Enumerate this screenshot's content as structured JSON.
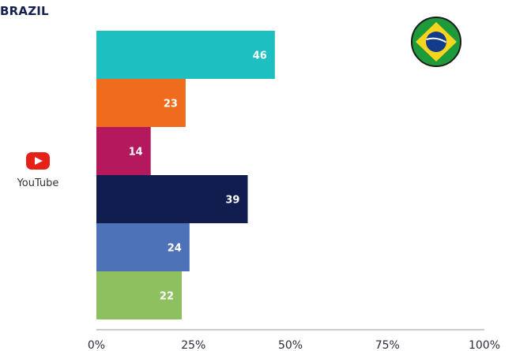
{
  "title": "BRAZIL",
  "platform": {
    "label": "YouTube",
    "icon": "youtube-icon"
  },
  "flag": {
    "icon": "brazil-flag-icon"
  },
  "chart_data": {
    "type": "bar",
    "orientation": "horizontal",
    "categories": [
      "",
      "",
      "",
      "",
      "",
      ""
    ],
    "values": [
      46,
      23,
      14,
      39,
      24,
      22
    ],
    "colors": [
      "#1ebfc0",
      "#ef6c1f",
      "#b3195c",
      "#111d4e",
      "#4d72b8",
      "#8fc05f"
    ],
    "xlim": [
      0,
      100
    ],
    "xticks": [
      "0%",
      "25%",
      "50%",
      "75%",
      "100%"
    ],
    "grid": false,
    "legend": "none"
  }
}
